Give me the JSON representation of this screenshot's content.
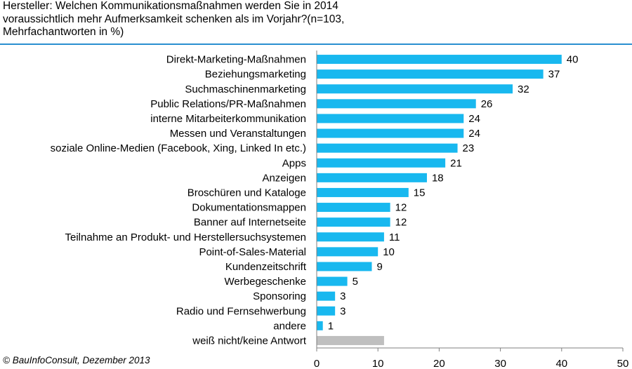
{
  "header": {
    "title": "Hersteller: Welchen Kommunikationsmaßnahmen werden Sie in 2014\nvoraussichtlich mehr Aufmerksamkeit schenken als im Vorjahr?(n=103,\nMehrfachantworten in %)"
  },
  "footer": {
    "source": "© BauInfoConsult, Dezember 2013"
  },
  "colors": {
    "bar": "#18b8ef",
    "bar_no_answer": "#bfbfbf",
    "title_rule": "#2a8fd0"
  },
  "chart_data": {
    "type": "bar",
    "orientation": "horizontal",
    "categories": [
      "Direkt-Marketing-Maßnahmen",
      "Beziehungsmarketing",
      "Suchmaschinenmarketing",
      "Public Relations/PR-Maßnahmen",
      "interne Mitarbeiterkommunikation",
      "Messen und Veranstaltungen",
      "soziale Online-Medien (Facebook, Xing, Linked In etc.)",
      "Apps",
      "Anzeigen",
      "Broschüren und Kataloge",
      "Dokumentationsmappen",
      "Banner auf Internetseite",
      "Teilnahme an Produkt- und Herstellersuchsystemen",
      "Point-of-Sales-Material",
      "Kundenzeitschrift",
      "Werbegeschenke",
      "Sponsoring",
      "Radio und Fernsehwerbung",
      "andere",
      "weiß nicht/keine Antwort"
    ],
    "values": [
      40,
      37,
      32,
      26,
      24,
      24,
      23,
      21,
      18,
      15,
      12,
      12,
      11,
      10,
      9,
      5,
      3,
      3,
      1,
      11
    ],
    "value_labels": [
      "40",
      "37",
      "32",
      "26",
      "24",
      "24",
      "23",
      "21",
      "18",
      "15",
      "12",
      "12",
      "11",
      "10",
      "9",
      "5",
      "3",
      "3",
      "1",
      ""
    ],
    "xlim": [
      0,
      50
    ],
    "xticks": [
      0,
      10,
      20,
      30,
      40,
      50
    ]
  }
}
